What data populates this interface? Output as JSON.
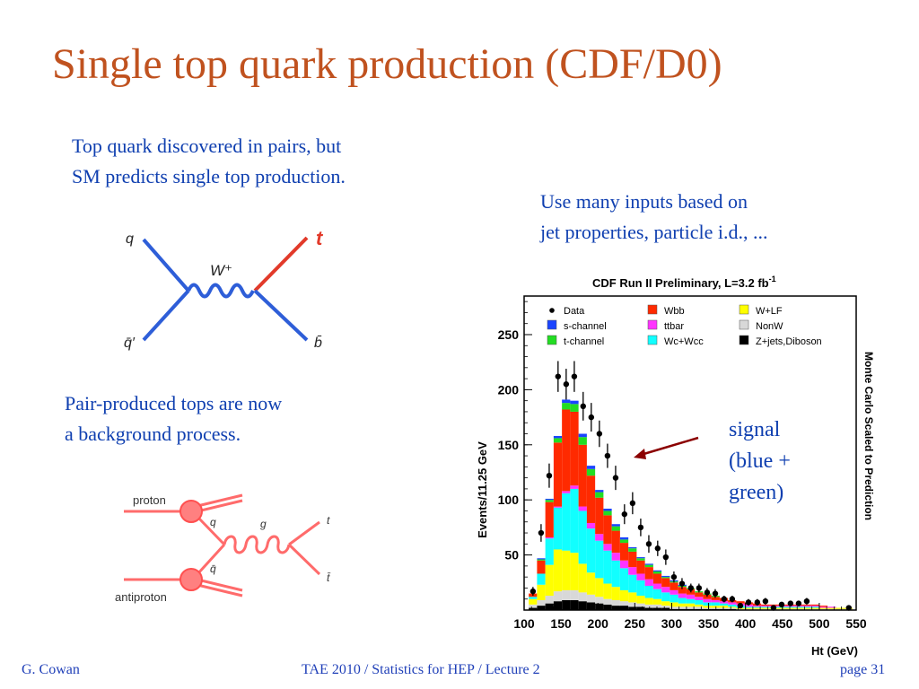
{
  "slide": {
    "title": "Single top quark production (CDF/D0)",
    "text1": [
      "Top quark discovered in pairs, but",
      "SM predicts single top production."
    ],
    "text2": [
      "Use many inputs based on",
      "jet properties, particle i.d., ..."
    ],
    "text3": [
      "Pair-produced tops are now",
      "a background process."
    ],
    "signal": [
      "signal",
      "(blue +",
      "green)"
    ]
  },
  "feynman_single": {
    "q": "q",
    "qbar": "q̄′",
    "w": "W⁺",
    "t": "t",
    "b": "b̄"
  },
  "feynman_pair": {
    "proton": "proton",
    "antiproton": "antiproton",
    "q": "q",
    "qbar": "q̄",
    "g": "g",
    "t": "t",
    "tbar": "t̄"
  },
  "chart_data": {
    "type": "bar",
    "title": "CDF Run II Preliminary, L=3.2 fb",
    "title_sup": "-1",
    "xlabel": "Ht (GeV)",
    "ylabel": "Events/11.25 GeV",
    "right_label": "Monte Carlo Scaled to Prediction",
    "xlim": [
      100,
      550
    ],
    "ylim": [
      0,
      285
    ],
    "xticks": [
      100,
      150,
      200,
      250,
      300,
      350,
      400,
      450,
      500,
      550
    ],
    "yticks": [
      50,
      100,
      150,
      200,
      250
    ],
    "bin_width": 11.25,
    "stack_order": [
      "Z+jets,Diboson",
      "NonW",
      "W+LF",
      "Wc+Wcc",
      "ttbar",
      "Wbb",
      "t-channel",
      "s-channel"
    ],
    "legend": [
      {
        "name": "Data",
        "marker": "dot",
        "color": "#000000"
      },
      {
        "name": "Wbb",
        "marker": "box",
        "color": "#ff2a00"
      },
      {
        "name": "W+LF",
        "marker": "box",
        "color": "#ffff00"
      },
      {
        "name": "s-channel",
        "marker": "box",
        "color": "#1a44ff"
      },
      {
        "name": "ttbar",
        "marker": "box",
        "color": "#ff33ff"
      },
      {
        "name": "NonW",
        "marker": "box",
        "color": "#d8d8d8"
      },
      {
        "name": "t-channel",
        "marker": "box",
        "color": "#22dd22"
      },
      {
        "name": "Wc+Wcc",
        "marker": "box",
        "color": "#11ffff"
      },
      {
        "name": "Z+jets,Diboson",
        "marker": "box",
        "color": "#000000"
      }
    ],
    "colors": {
      "Z+jets,Diboson": "#000000",
      "NonW": "#d8d8d8",
      "W+LF": "#ffff00",
      "Wc+Wcc": "#11ffff",
      "ttbar": "#ff33ff",
      "Wbb": "#ff2a00",
      "t-channel": "#22dd22",
      "s-channel": "#1a44ff"
    },
    "bins_low_edge": [
      106.25,
      117.5,
      128.75,
      140,
      151.25,
      162.5,
      173.75,
      185,
      196.25,
      207.5,
      218.75,
      230,
      241.25,
      252.5,
      263.75,
      275,
      286.25,
      297.5,
      308.75,
      320,
      331.25,
      342.5,
      353.75,
      365,
      376.25,
      387.5,
      398.75,
      410,
      421.25,
      432.5,
      443.75,
      455,
      466.25,
      477.5,
      488.75,
      500,
      511.25,
      522.5,
      533.75
    ],
    "stack_values": {
      "Z+jets,Diboson": [
        2,
        4,
        6,
        8,
        9,
        9,
        8,
        7,
        6,
        5,
        4,
        4,
        3,
        3,
        2,
        2,
        2,
        1,
        1,
        1,
        1,
        1,
        1,
        1,
        1,
        0,
        0,
        0,
        0,
        0,
        0,
        0,
        0,
        0,
        0,
        0,
        0,
        0,
        0
      ],
      "NonW": [
        3,
        5,
        7,
        9,
        9,
        9,
        8,
        7,
        6,
        5,
        5,
        4,
        4,
        3,
        3,
        3,
        2,
        2,
        2,
        2,
        2,
        1,
        1,
        1,
        1,
        1,
        1,
        1,
        1,
        1,
        1,
        1,
        1,
        1,
        1,
        1,
        1,
        1,
        1
      ],
      "W+LF": [
        5,
        14,
        28,
        38,
        36,
        34,
        26,
        20,
        17,
        14,
        12,
        10,
        9,
        7,
        6,
        5,
        4,
        4,
        3,
        3,
        2,
        2,
        2,
        2,
        1,
        1,
        1,
        1,
        1,
        1,
        1,
        1,
        1,
        1,
        1,
        1,
        1,
        1,
        1
      ],
      "Wc+Wcc": [
        2,
        10,
        24,
        38,
        52,
        58,
        48,
        40,
        34,
        30,
        24,
        20,
        16,
        14,
        11,
        9,
        8,
        7,
        5,
        4,
        4,
        3,
        3,
        2,
        2,
        2,
        1,
        1,
        1,
        1,
        1,
        1,
        1,
        1,
        1,
        0,
        0,
        0,
        0
      ],
      "ttbar": [
        0,
        0,
        1,
        1,
        2,
        3,
        4,
        5,
        6,
        6,
        7,
        7,
        7,
        6,
        6,
        5,
        5,
        4,
        4,
        4,
        3,
        3,
        2,
        2,
        2,
        2,
        2,
        1,
        1,
        1,
        1,
        1,
        1,
        1,
        1,
        1,
        1,
        0,
        0
      ],
      "Wbb": [
        3,
        12,
        32,
        58,
        74,
        67,
        56,
        43,
        33,
        26,
        20,
        16,
        14,
        12,
        11,
        9,
        8,
        7,
        6,
        5,
        4,
        4,
        3,
        3,
        2,
        2,
        2,
        2,
        1,
        1,
        1,
        1,
        1,
        1,
        1,
        1,
        0,
        0,
        0
      ],
      "t-channel": [
        0,
        1,
        2,
        4,
        6,
        7,
        7,
        6,
        5,
        4,
        4,
        3,
        3,
        2,
        2,
        2,
        1,
        1,
        1,
        1,
        1,
        1,
        1,
        0,
        0,
        0,
        0,
        0,
        0,
        0,
        0,
        0,
        0,
        0,
        0,
        0,
        0,
        0,
        0
      ],
      "s-channel": [
        0,
        1,
        1,
        2,
        3,
        3,
        3,
        3,
        2,
        2,
        2,
        2,
        1,
        1,
        1,
        1,
        1,
        1,
        1,
        0,
        0,
        0,
        0,
        0,
        0,
        0,
        0,
        0,
        0,
        0,
        0,
        0,
        0,
        0,
        0,
        0,
        0,
        0,
        0
      ]
    },
    "data_points": [
      {
        "x": 112,
        "y": 17
      },
      {
        "x": 123,
        "y": 70
      },
      {
        "x": 134,
        "y": 122
      },
      {
        "x": 146,
        "y": 212
      },
      {
        "x": 157,
        "y": 205
      },
      {
        "x": 168,
        "y": 212
      },
      {
        "x": 180,
        "y": 185
      },
      {
        "x": 191,
        "y": 175
      },
      {
        "x": 202,
        "y": 160
      },
      {
        "x": 213,
        "y": 140
      },
      {
        "x": 224,
        "y": 120
      },
      {
        "x": 236,
        "y": 87
      },
      {
        "x": 247,
        "y": 97
      },
      {
        "x": 258,
        "y": 75
      },
      {
        "x": 269,
        "y": 60
      },
      {
        "x": 281,
        "y": 56
      },
      {
        "x": 292,
        "y": 48
      },
      {
        "x": 303,
        "y": 30
      },
      {
        "x": 314,
        "y": 24
      },
      {
        "x": 326,
        "y": 20
      },
      {
        "x": 337,
        "y": 20
      },
      {
        "x": 348,
        "y": 16
      },
      {
        "x": 359,
        "y": 15
      },
      {
        "x": 371,
        "y": 10
      },
      {
        "x": 382,
        "y": 10
      },
      {
        "x": 393,
        "y": 4
      },
      {
        "x": 404,
        "y": 7
      },
      {
        "x": 416,
        "y": 7
      },
      {
        "x": 427,
        "y": 8
      },
      {
        "x": 438,
        "y": 2
      },
      {
        "x": 449,
        "y": 5
      },
      {
        "x": 461,
        "y": 6
      },
      {
        "x": 472,
        "y": 6
      },
      {
        "x": 483,
        "y": 8
      },
      {
        "x": 540,
        "y": 2
      }
    ],
    "data_errors": [
      4,
      8,
      11,
      14,
      14,
      14,
      13,
      13,
      12,
      11,
      11,
      9,
      10,
      8,
      8,
      7,
      7,
      5,
      5,
      4,
      4,
      4,
      4,
      3,
      3,
      2,
      3,
      3,
      3,
      1,
      2,
      2,
      2,
      3,
      1
    ]
  },
  "footer": {
    "author": "G. Cowan",
    "center": "TAE 2010 / Statistics for HEP / Lecture 2",
    "page": "page 31"
  }
}
